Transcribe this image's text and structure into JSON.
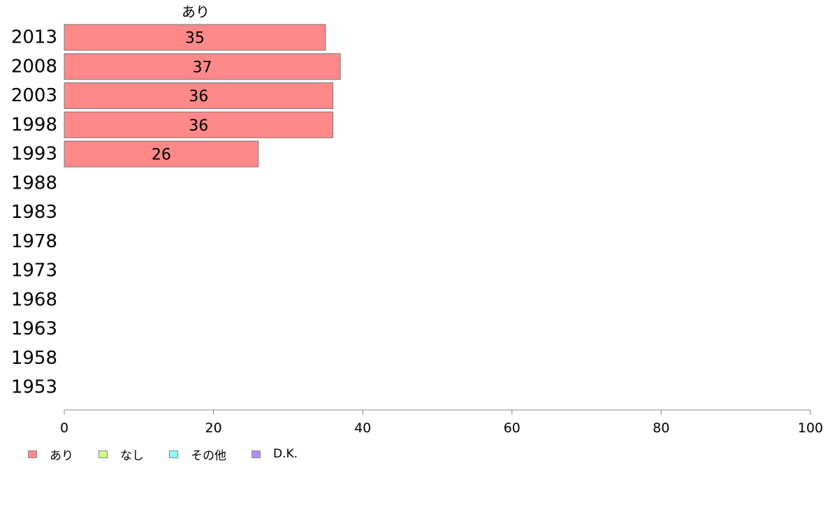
{
  "chart_data": {
    "type": "bar",
    "orientation": "horizontal",
    "stacked": true,
    "categories": [
      "2013",
      "2008",
      "2003",
      "1998",
      "1993",
      "1988",
      "1983",
      "1978",
      "1973",
      "1968",
      "1963",
      "1958",
      "1953"
    ],
    "series": [
      {
        "name": "あり",
        "color": "#ff8888",
        "values": [
          35,
          37,
          36,
          36,
          26,
          null,
          null,
          null,
          null,
          null,
          null,
          null,
          null
        ],
        "labels": [
          "35",
          "37",
          "36",
          "36",
          "26"
        ]
      },
      {
        "name": "なし",
        "color": "#ccff88",
        "values": [
          null,
          null,
          null,
          null,
          null,
          null,
          null,
          null,
          null,
          null,
          null,
          null,
          null
        ]
      },
      {
        "name": "その他",
        "color": "#88ffff",
        "values": [
          null,
          null,
          null,
          null,
          null,
          null,
          null,
          null,
          null,
          null,
          null,
          null,
          null
        ]
      },
      {
        "name": "D.K.",
        "color": "#bb88ff",
        "values": [
          null,
          null,
          null,
          null,
          null,
          null,
          null,
          null,
          null,
          null,
          null,
          null,
          null
        ]
      }
    ],
    "xlim": [
      0,
      100
    ],
    "xticks": [
      "0",
      "20",
      "40",
      "60",
      "80",
      "100"
    ],
    "column_header": "あり",
    "legend_position": "bottom-left",
    "grid": false
  }
}
